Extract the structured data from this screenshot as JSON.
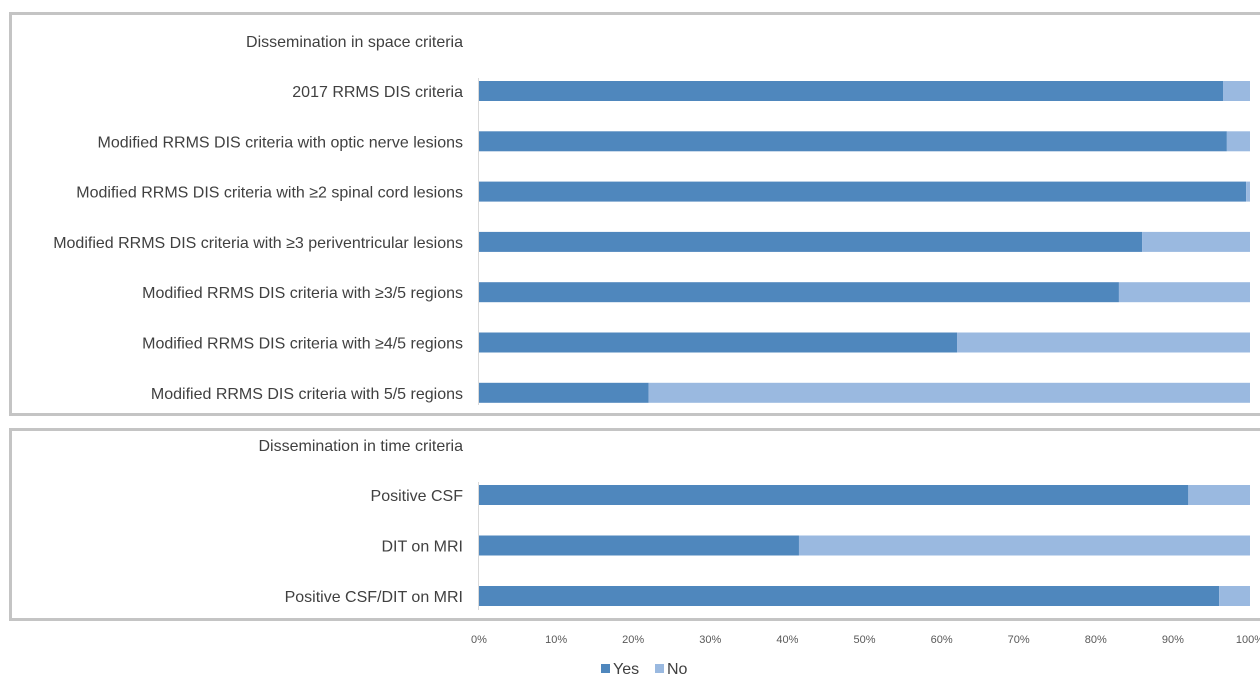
{
  "chart_data": {
    "type": "bar",
    "orientation": "horizontal",
    "stacked": true,
    "percent_stacked": true,
    "xlim": [
      0,
      100
    ],
    "x_ticks": [
      "0%",
      "10%",
      "20%",
      "30%",
      "40%",
      "50%",
      "60%",
      "70%",
      "80%",
      "90%",
      "100%"
    ],
    "grid": false,
    "legend_position": "bottom",
    "colors": {
      "Yes": "#4f87bd",
      "No": "#9ab9e0"
    },
    "panels": [
      {
        "title": "Dissemination in space criteria",
        "categories": [
          "2017 RRMS DIS criteria",
          "Modified RRMS DIS criteria with optic nerve lesions",
          "Modified RRMS DIS criteria with ≥2 spinal cord lesions",
          "Modified RRMS DIS criteria with ≥3 periventricular lesions",
          "Modified RRMS DIS criteria with ≥3/5 regions",
          "Modified RRMS DIS criteria with ≥4/5 regions",
          "Modified RRMS DIS criteria with 5/5 regions"
        ],
        "series": [
          {
            "name": "Yes",
            "values": [
              96.5,
              97,
              99.5,
              86,
              83,
              62,
              22
            ]
          },
          {
            "name": "No",
            "values": [
              3.5,
              3,
              0.5,
              14,
              17,
              38,
              78
            ]
          }
        ]
      },
      {
        "title": "Dissemination in time criteria",
        "categories": [
          "Positive CSF",
          "DIT on MRI",
          "Positive CSF/DIT on MRI"
        ],
        "series": [
          {
            "name": "Yes",
            "values": [
              92,
              41.5,
              96
            ]
          },
          {
            "name": "No",
            "values": [
              8,
              58.5,
              4
            ]
          }
        ]
      }
    ],
    "legend": [
      "Yes",
      "No"
    ]
  }
}
